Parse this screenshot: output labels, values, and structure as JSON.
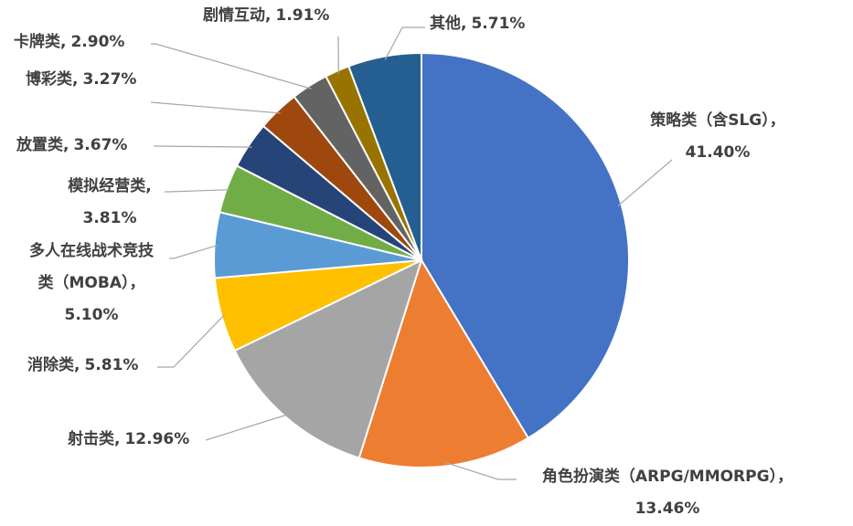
{
  "chart_data": {
    "type": "pie",
    "categories": [
      "策略类（含SLG），",
      "角色扮演类（ARPG/MMORPG），",
      "射击类,",
      "消除类,",
      "多人在线战术竞技类（MOBA），",
      "模拟经营类,",
      "放置类,",
      "博彩类,",
      "卡牌类,",
      "剧情互动,",
      "其他,"
    ],
    "values": [
      41.4,
      13.46,
      12.96,
      5.81,
      5.1,
      3.81,
      3.67,
      3.27,
      2.9,
      1.91,
      5.71
    ],
    "value_labels": [
      "41.40%",
      "13.46%",
      "12.96%",
      "5.81%",
      "5.10%",
      "3.81%",
      "3.67%",
      "3.27%",
      "2.90%",
      "1.91%",
      "5.71%"
    ],
    "colors": [
      "#4472c4",
      "#ed7d31",
      "#a5a5a5",
      "#ffc000",
      "#5b9bd5",
      "#70ad47",
      "#264478",
      "#9e480e",
      "#636363",
      "#997300",
      "#255e91"
    ]
  }
}
